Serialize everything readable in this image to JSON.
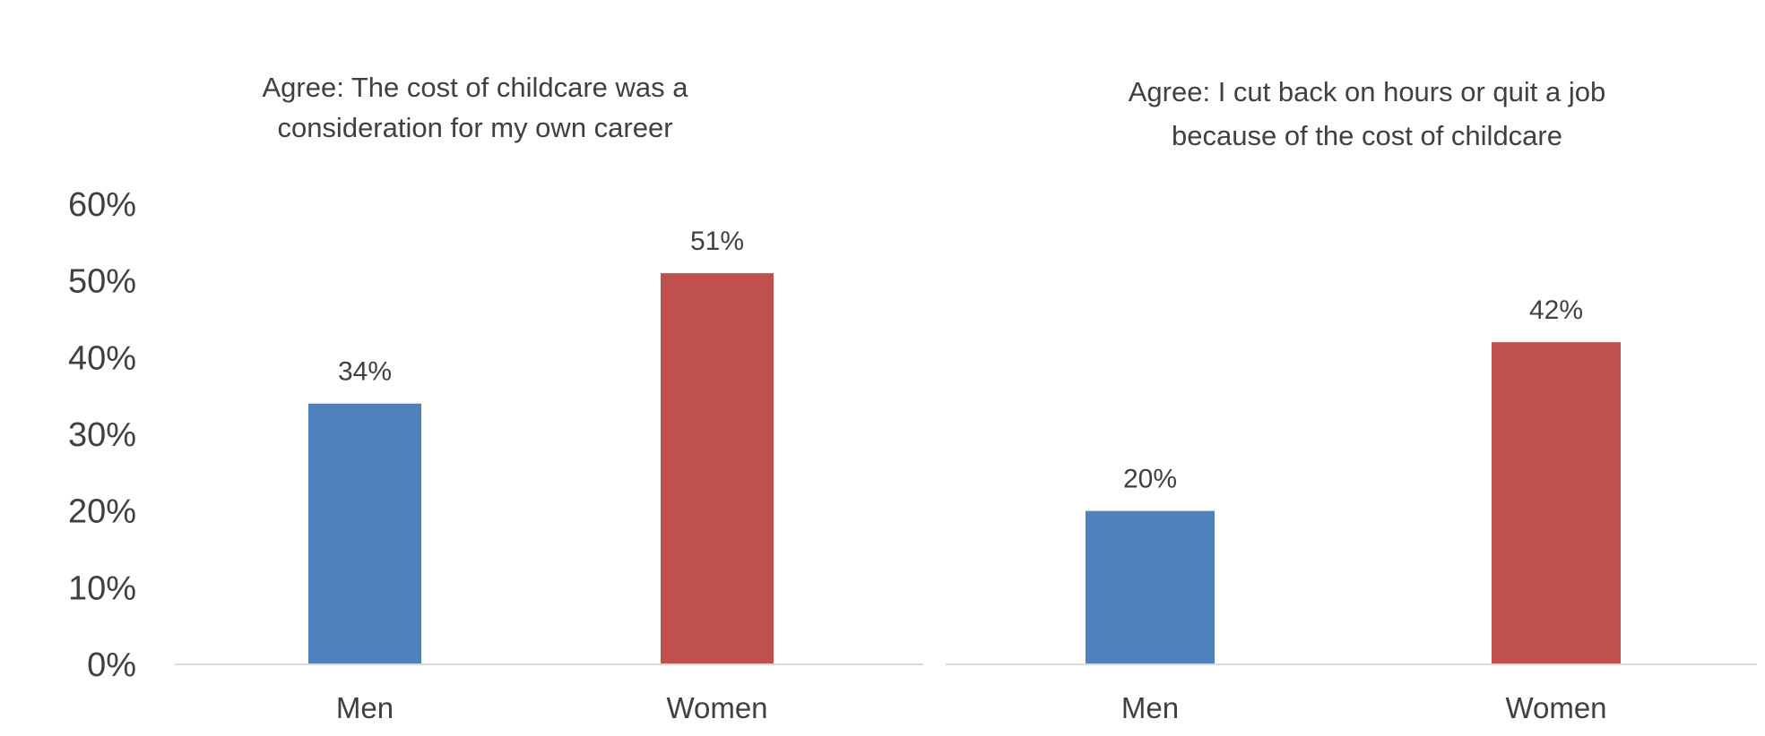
{
  "chart_data": [
    {
      "type": "bar",
      "title_lines": [
        "Agree: The cost of childcare was a",
        "consideration for my own career"
      ],
      "categories": [
        "Men",
        "Women"
      ],
      "values": [
        34,
        51
      ],
      "data_labels": [
        "34%",
        "51%"
      ],
      "colors": [
        "#4f81bd",
        "#c0504d"
      ],
      "ylim": [
        0,
        60
      ],
      "yticks": [
        "0%",
        "10%",
        "20%",
        "30%",
        "40%",
        "50%",
        "60%"
      ],
      "show_y_axis_labels": true,
      "grid": false
    },
    {
      "type": "bar",
      "title_lines": [
        "Agree: I cut back on hours or quit a job",
        "because of the cost of childcare"
      ],
      "categories": [
        "Men",
        "Women"
      ],
      "values": [
        20,
        42
      ],
      "data_labels": [
        "20%",
        "42%"
      ],
      "colors": [
        "#4f81bd",
        "#c0504d"
      ],
      "ylim": [
        0,
        60
      ],
      "show_y_axis_labels": false,
      "grid": false
    }
  ]
}
